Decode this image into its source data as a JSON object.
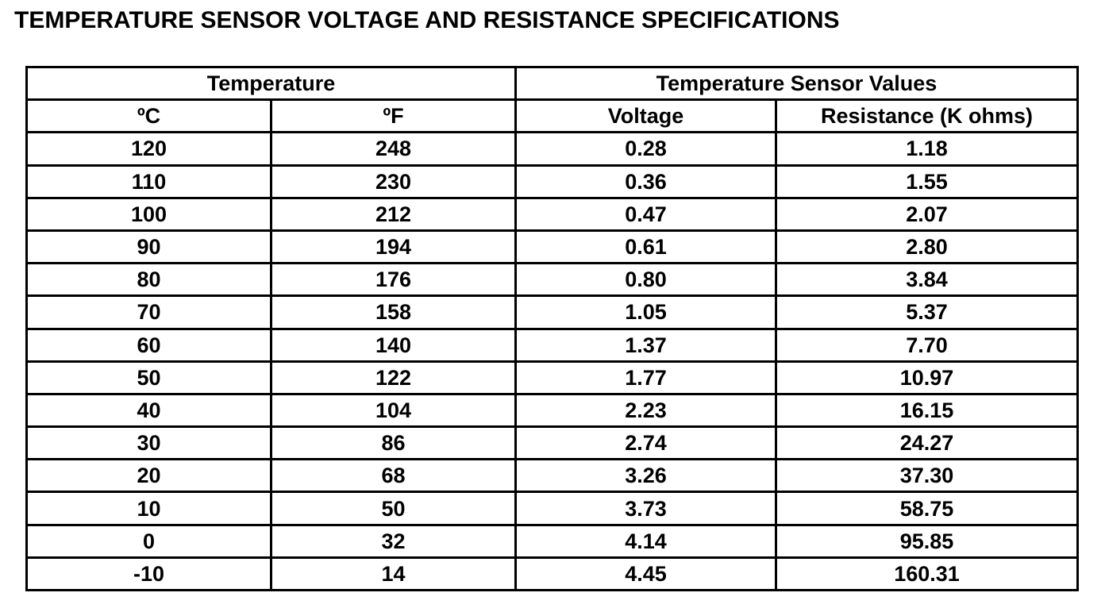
{
  "title": "TEMPERATURE SENSOR VOLTAGE AND RESISTANCE SPECIFICATIONS",
  "table": {
    "groups": [
      "Temperature",
      "Temperature Sensor Values"
    ],
    "columns": [
      "ºC",
      "ºF",
      "Voltage",
      "Resistance (K ohms)"
    ],
    "rows": [
      [
        "120",
        "248",
        "0.28",
        "1.18"
      ],
      [
        "110",
        "230",
        "0.36",
        "1.55"
      ],
      [
        "100",
        "212",
        "0.47",
        "2.07"
      ],
      [
        "90",
        "194",
        "0.61",
        "2.80"
      ],
      [
        "80",
        "176",
        "0.80",
        "3.84"
      ],
      [
        "70",
        "158",
        "1.05",
        "5.37"
      ],
      [
        "60",
        "140",
        "1.37",
        "7.70"
      ],
      [
        "50",
        "122",
        "1.77",
        "10.97"
      ],
      [
        "40",
        "104",
        "2.23",
        "16.15"
      ],
      [
        "30",
        "86",
        "2.74",
        "24.27"
      ],
      [
        "20",
        "68",
        "3.26",
        "37.30"
      ],
      [
        "10",
        "50",
        "3.73",
        "58.75"
      ],
      [
        "0",
        "32",
        "4.14",
        "95.85"
      ],
      [
        "-10",
        "14",
        "4.45",
        "160.31"
      ]
    ]
  }
}
